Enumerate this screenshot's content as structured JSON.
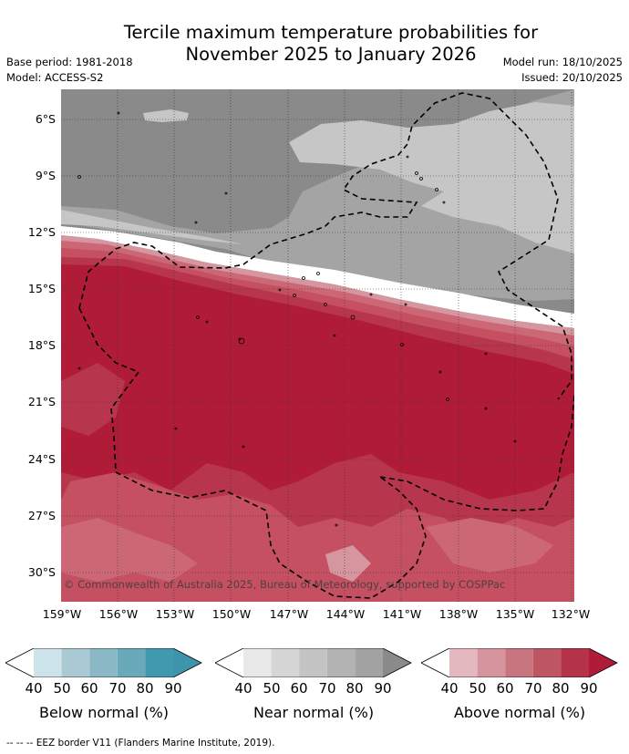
{
  "title": {
    "line1": "Tercile maximum temperature probabilities for",
    "line2": "November 2025 to January 2026"
  },
  "meta": {
    "base_period": "Base period: 1981-2018",
    "model": "Model: ACCESS-S2",
    "model_run": "Model run: 18/10/2025",
    "issued": "Issued: 20/10/2025"
  },
  "map": {
    "lat_labels": [
      "6°S",
      "9°S",
      "12°S",
      "15°S",
      "18°S",
      "21°S",
      "24°S",
      "27°S",
      "30°S"
    ],
    "lon_labels": [
      "159°W",
      "156°W",
      "153°W",
      "150°W",
      "147°W",
      "144°W",
      "141°W",
      "138°W",
      "135°W",
      "132°W"
    ],
    "copyright": "© Commonwealth of Australia 2025, Bureau of Meteorology, supported by COSPPac",
    "colors": {
      "near_dark": "#8a8a8a",
      "near_mid": "#a4a4a4",
      "near_light": "#c6c6c6",
      "above_90": "#b01c38",
      "above_80": "#b8364d",
      "above_70": "#c45062",
      "above_60": "#cc6876",
      "above_50": "#d6969f",
      "eez": "#000000"
    }
  },
  "colorbars": {
    "below": {
      "title": "Below normal (%)",
      "ticks": [
        "40",
        "50",
        "60",
        "70",
        "80",
        "90"
      ],
      "colors": [
        "#ffffff",
        "#cde3ea",
        "#a9cad3",
        "#8bb8c5",
        "#6aa9ba",
        "#4199ae",
        "#3e95ab"
      ]
    },
    "near": {
      "title": "Near normal (%)",
      "ticks": [
        "40",
        "50",
        "60",
        "70",
        "80",
        "90"
      ],
      "colors": [
        "#ffffff",
        "#e8e8e8",
        "#d6d6d6",
        "#c4c4c4",
        "#b3b3b3",
        "#a3a3a3",
        "#8a8a8a"
      ]
    },
    "above": {
      "title": "Above normal (%)",
      "ticks": [
        "40",
        "50",
        "60",
        "70",
        "80",
        "90"
      ],
      "colors": [
        "#ffffff",
        "#e3b8be",
        "#d6959e",
        "#c97580",
        "#be5664",
        "#b53348",
        "#b01c38"
      ]
    }
  },
  "footer": "--  --  -- EEZ border V11 (Flanders Marine Institute, 2019)."
}
